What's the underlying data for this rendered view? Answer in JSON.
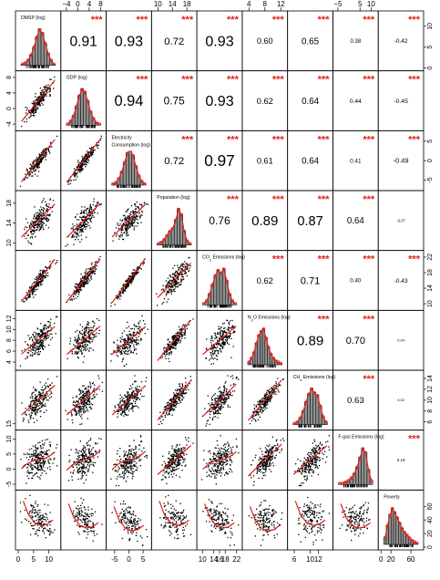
{
  "chart_data": {
    "type": "scatter",
    "title": "",
    "variables": [
      {
        "key": "dmsp",
        "label_lines": [
          "DMSP (log)"
        ],
        "sub": null,
        "range": [
          0,
          13
        ],
        "ticks": [
          0,
          5,
          10
        ],
        "tick_side": "bottom"
      },
      {
        "key": "gdp",
        "label_lines": [
          "GDP (log)"
        ],
        "sub": null,
        "range": [
          -5,
          9
        ],
        "ticks": [
          -4,
          0,
          4,
          8
        ],
        "tick_side": "top"
      },
      {
        "key": "elec",
        "label_lines": [
          "Electricity",
          "Consumption (log)"
        ],
        "sub": null,
        "range": [
          -7,
          7
        ],
        "ticks": [
          -5,
          0,
          5
        ],
        "tick_side": "bottom"
      },
      {
        "key": "pop",
        "label_lines": [
          "Population (log)"
        ],
        "sub": null,
        "range": [
          9,
          20
        ],
        "ticks": [
          10,
          14,
          18
        ],
        "tick_side": "top"
      },
      {
        "key": "co2",
        "label_lines": [
          "CO2 Emissions (log)"
        ],
        "sub": {
          "prefix": "CO",
          "sub": "2",
          "suffix": " Emissions (log)"
        },
        "range": [
          9,
          23
        ],
        "ticks": [
          10,
          14,
          16,
          18,
          22
        ],
        "tick_side": "bottom"
      },
      {
        "key": "n2o",
        "label_lines": [
          "N2O Emissions (log)"
        ],
        "sub": {
          "prefix": "N",
          "sub": "2",
          "suffix": "O Emissions (log)"
        },
        "range": [
          3,
          13
        ],
        "ticks": [
          4,
          8,
          12
        ],
        "tick_side": "top"
      },
      {
        "key": "ch4",
        "label_lines": [
          "CH4 Emissions (log)"
        ],
        "sub": {
          "prefix": "CH",
          "sub": "4",
          "suffix": " Emissions (log)"
        },
        "range": [
          5,
          15
        ],
        "ticks": [
          6,
          10,
          12
        ],
        "tick_side": "bottom"
      },
      {
        "key": "fgas",
        "label_lines": [
          "F-gas Emissions (log)"
        ],
        "sub": null,
        "range": [
          -6,
          12
        ],
        "ticks": [
          -5,
          5,
          10
        ],
        "tick_side": "top"
      },
      {
        "key": "poverty",
        "label_lines": [
          "Poverty"
        ],
        "sub": null,
        "range": [
          0,
          80
        ],
        "ticks": [
          0,
          20,
          60
        ],
        "tick_side": "bottom"
      }
    ],
    "left_axis": [
      {
        "ticks": [],
        "labels": []
      },
      {
        "ticks": [
          -4,
          0,
          4,
          8
        ],
        "labels": [
          "-4",
          "0",
          "4",
          "8"
        ]
      },
      {
        "ticks": [],
        "labels": []
      },
      {
        "ticks": [
          10,
          14,
          18
        ],
        "labels": [
          "10",
          "14",
          "18"
        ]
      },
      {
        "ticks": [],
        "labels": []
      },
      {
        "ticks": [
          4,
          6,
          8,
          10,
          12
        ],
        "labels": [
          "4",
          "6",
          "8",
          "10",
          "12"
        ]
      },
      {
        "ticks": [],
        "labels": []
      },
      {
        "ticks": [
          -5,
          0,
          5,
          10,
          15
        ],
        "labels": [
          "-5",
          "0",
          "5",
          "10",
          "15"
        ]
      },
      {
        "ticks": [],
        "labels": []
      }
    ],
    "right_axis": [
      {
        "ticks": [
          0,
          5,
          10
        ],
        "labels": [
          "0",
          "5",
          "10"
        ]
      },
      {
        "ticks": [],
        "labels": []
      },
      {
        "ticks": [
          -5,
          0,
          5
        ],
        "labels": [
          "-5",
          "0",
          "5"
        ]
      },
      {
        "ticks": [],
        "labels": []
      },
      {
        "ticks": [
          10,
          14,
          18,
          22
        ],
        "labels": [
          "10",
          "14",
          "18",
          "22"
        ]
      },
      {
        "ticks": [],
        "labels": []
      },
      {
        "ticks": [
          6,
          8,
          10,
          12,
          14
        ],
        "labels": [
          "6",
          "8",
          "10",
          "12",
          "14"
        ]
      },
      {
        "ticks": [],
        "labels": []
      },
      {
        "ticks": [
          0,
          20,
          40,
          60
        ],
        "labels": [
          "0",
          "20",
          "40",
          "60"
        ]
      }
    ],
    "correlations": [
      {
        "row": 0,
        "col": 1,
        "value": "0.91",
        "stars": "***"
      },
      {
        "row": 0,
        "col": 2,
        "value": "0.93",
        "stars": "***"
      },
      {
        "row": 0,
        "col": 3,
        "value": "0.72",
        "stars": "***"
      },
      {
        "row": 0,
        "col": 4,
        "value": "0.93",
        "stars": "***"
      },
      {
        "row": 0,
        "col": 5,
        "value": "0.60",
        "stars": "***"
      },
      {
        "row": 0,
        "col": 6,
        "value": "0.65",
        "stars": "***"
      },
      {
        "row": 0,
        "col": 7,
        "value": "0.38",
        "stars": "***"
      },
      {
        "row": 0,
        "col": 8,
        "value": "-0.42",
        "stars": "***"
      },
      {
        "row": 1,
        "col": 2,
        "value": "0.94",
        "stars": "***"
      },
      {
        "row": 1,
        "col": 3,
        "value": "0.75",
        "stars": "***"
      },
      {
        "row": 1,
        "col": 4,
        "value": "0.93",
        "stars": "***"
      },
      {
        "row": 1,
        "col": 5,
        "value": "0.62",
        "stars": "***"
      },
      {
        "row": 1,
        "col": 6,
        "value": "0.64",
        "stars": "***"
      },
      {
        "row": 1,
        "col": 7,
        "value": "0.44",
        "stars": "***"
      },
      {
        "row": 1,
        "col": 8,
        "value": "-0.45",
        "stars": "***"
      },
      {
        "row": 2,
        "col": 3,
        "value": "0.72",
        "stars": "***"
      },
      {
        "row": 2,
        "col": 4,
        "value": "0.97",
        "stars": "***"
      },
      {
        "row": 2,
        "col": 5,
        "value": "0.61",
        "stars": "***"
      },
      {
        "row": 2,
        "col": 6,
        "value": "0.64",
        "stars": "***"
      },
      {
        "row": 2,
        "col": 7,
        "value": "0.41",
        "stars": "***"
      },
      {
        "row": 2,
        "col": 8,
        "value": "-0.49",
        "stars": "***"
      },
      {
        "row": 3,
        "col": 4,
        "value": "0.76",
        "stars": "***"
      },
      {
        "row": 3,
        "col": 5,
        "value": "0.89",
        "stars": "***"
      },
      {
        "row": 3,
        "col": 6,
        "value": "0.87",
        "stars": "***"
      },
      {
        "row": 3,
        "col": 7,
        "value": "0.64",
        "stars": "***"
      },
      {
        "row": 3,
        "col": 8,
        "value": "-0.07",
        "stars": ""
      },
      {
        "row": 4,
        "col": 5,
        "value": "0.62",
        "stars": "***"
      },
      {
        "row": 4,
        "col": 6,
        "value": "0.71",
        "stars": "***"
      },
      {
        "row": 4,
        "col": 7,
        "value": "0.40",
        "stars": "***"
      },
      {
        "row": 4,
        "col": 8,
        "value": "-0.43",
        "stars": "***"
      },
      {
        "row": 5,
        "col": 6,
        "value": "0.89",
        "stars": "***"
      },
      {
        "row": 5,
        "col": 7,
        "value": "0.70",
        "stars": "***"
      },
      {
        "row": 5,
        "col": 8,
        "value": "0.04",
        "stars": ""
      },
      {
        "row": 6,
        "col": 7,
        "value": "0.63",
        "stars": "***"
      },
      {
        "row": 6,
        "col": 8,
        "value": "0.02",
        "stars": ""
      },
      {
        "row": 7,
        "col": 8,
        "value": "0.19",
        "stars": "***"
      }
    ],
    "histograms": [
      {
        "counts": [
          1,
          2,
          4,
          8,
          14,
          22,
          28,
          25,
          17,
          9,
          4,
          1
        ]
      },
      {
        "counts": [
          1,
          3,
          7,
          14,
          22,
          27,
          25,
          18,
          10,
          5,
          2,
          1
        ]
      },
      {
        "counts": [
          1,
          2,
          5,
          10,
          17,
          24,
          27,
          22,
          14,
          7,
          3,
          1
        ]
      },
      {
        "counts": [
          1,
          2,
          4,
          7,
          10,
          12,
          18,
          26,
          22,
          10,
          3,
          1
        ]
      },
      {
        "counts": [
          1,
          3,
          8,
          15,
          22,
          26,
          24,
          27,
          18,
          8,
          3,
          1
        ]
      },
      {
        "counts": [
          2,
          5,
          9,
          16,
          22,
          25,
          27,
          20,
          13,
          8,
          5,
          3,
          2,
          1
        ]
      },
      {
        "counts": [
          1,
          2,
          5,
          10,
          17,
          23,
          27,
          24,
          22,
          14,
          6,
          2
        ]
      },
      {
        "counts": [
          1,
          1,
          2,
          3,
          5,
          8,
          13,
          20,
          27,
          24,
          11,
          3
        ]
      },
      {
        "counts": [
          5,
          14,
          22,
          27,
          24,
          20,
          16,
          12,
          9,
          7,
          5,
          3,
          2,
          1
        ]
      }
    ],
    "poverty_loess": [
      [
        2,
        0.85
      ],
      [
        12,
        0.6
      ],
      [
        24,
        0.45
      ],
      [
        36,
        0.4
      ],
      [
        48,
        0.42
      ],
      [
        60,
        0.5
      ]
    ],
    "loess_color": "#e0201b",
    "point_color": "#000000",
    "bar_color": "#8f8f8f"
  }
}
